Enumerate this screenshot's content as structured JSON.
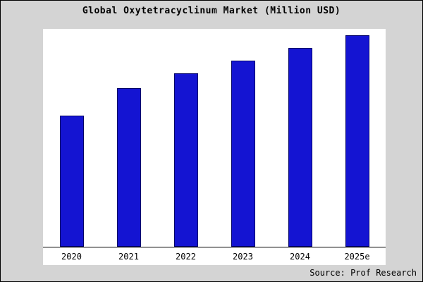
{
  "chart_data": {
    "type": "bar",
    "title": "Global Oxytetracyclinum Market (Million USD)",
    "categories": [
      "2020",
      "2021",
      "2022",
      "2023",
      "2024",
      "2025e"
    ],
    "values": [
      62,
      75,
      82,
      88,
      94,
      100
    ],
    "xlabel": "",
    "ylabel": "",
    "ylim": [
      0,
      100
    ],
    "grid": false,
    "legend": "none",
    "bar_color": "#1414d2"
  },
  "source": "Source: Prof Research",
  "colors": {
    "background": "#d4d4d4",
    "plot_background": "#ffffff",
    "bar": "#1414d2",
    "bar_outline": "#000066",
    "axis": "#000000",
    "text": "#000000"
  }
}
